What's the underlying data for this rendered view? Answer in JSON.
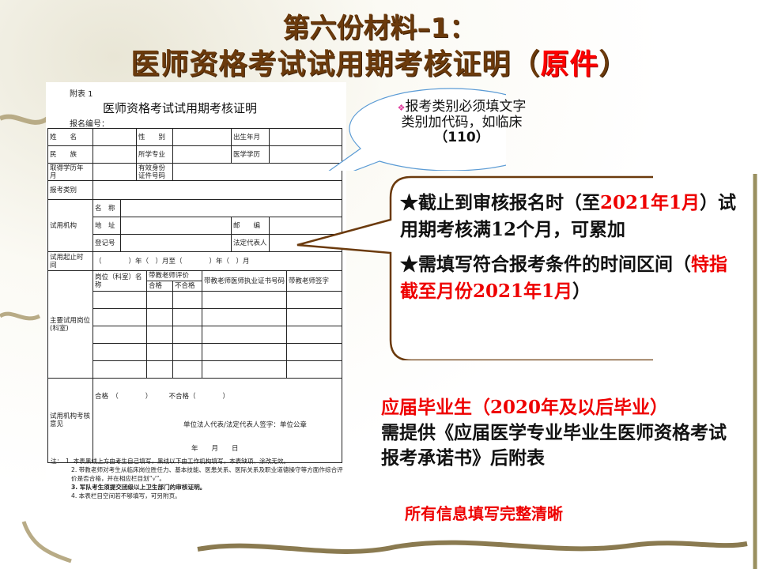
{
  "slide": {
    "title_line1": "第六份材料–1：",
    "title_line2_prefix": "医师资格考试试用期考核证明（",
    "title_line2_highlight": "原件",
    "title_line2_suffix": "）",
    "colors": {
      "title": "#6b3a0c",
      "highlight": "#ff0000",
      "callout_border": "#6b3a0c",
      "bubble_border": "#5b9bd5"
    }
  },
  "form": {
    "attachment": "附表 1",
    "title": "医师资格考试试用期考核证明",
    "reg_no_label": "报名编号：",
    "labels": {
      "name": "姓　　名",
      "gender": "性　　别",
      "birth": "出生年月",
      "ethnic": "民　　族",
      "major": "所学专业",
      "degree": "医学学历",
      "degree_date": "取得学历年　　月",
      "id_no": "有效身份证件号码",
      "category": "报考类别",
      "institution": "试用机构",
      "inst_name": "名　称",
      "inst_addr": "地　址",
      "postcode": "邮　　编",
      "reg_num": "登记号",
      "legal_rep": "法定代表人",
      "period": "试用起止时　　间",
      "period_text": "（　　　　）年（　）月至（　　　　）年（　）月",
      "posts": "主要试用岗位(科室)",
      "post_name": "岗位（科室）名　　　称",
      "teacher_eval": "带教老师评价",
      "pass": "合格",
      "fail": "不合格",
      "teacher_cert": "带教老师医师执业证书号码",
      "teacher_sign": "带教老师签字",
      "opinion": "试用机构考核意见",
      "opinion_pass": "合格　（　　　　）　　　不合格（　　　　）",
      "opinion_sign": "单位法人代表/法定代表人签字：单位公章",
      "opinion_date": "年　　月　　日"
    },
    "notes": [
      "注：　1. 本表黑线上方由考生自己填写，黑线以下由工作机构填写，本表缺项、涂改无效。",
      "2. 带教老师对考生从临床岗位胜任力、基本技能、医患关系、医际关系及职业道德操守等方面作综合评价是否合格，并在相应栏目划“√”。",
      "3. 军队考生须提交团级以上卫生部门的审核证明。",
      "4. 本表栏目空间若不够填写，可另附页。"
    ]
  },
  "bubble": {
    "bullet_icon": "diamond-bullet",
    "text_line1": "报考类别必须填文字",
    "text_line2": "类别加代码，如临床",
    "text_line3": "（110）"
  },
  "callout": {
    "item1_a": "★截止到审核报名时（至",
    "item1_red1": "2021年1月",
    "item1_b": "）试用期考核满12个月，可累加",
    "item2_a": "★需填写符合报考条件的时间区间（",
    "item2_red": "特指截至月份2021年1月",
    "item2_b": "）"
  },
  "graduate": {
    "line1": "应届毕业生（2020年及以后毕业）",
    "line2": "需提供《应届医学专业毕业生医师资格考试报考承诺书》后附表"
  },
  "footer_note": "所有信息填写完整清晰"
}
